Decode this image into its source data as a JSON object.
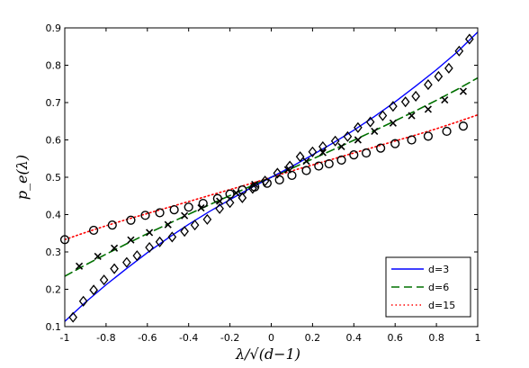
{
  "chart_data": {
    "type": "line",
    "title": "",
    "xlabel": "λ/√(d−1)",
    "ylabel": "p_e(λ)",
    "xlim": [
      -1,
      1
    ],
    "ylim": [
      0.1,
      0.9
    ],
    "xticks": [
      "-1",
      "-0.8",
      "-0.6",
      "-0.4",
      "-0.2",
      "0",
      "0.2",
      "0.4",
      "0.6",
      "0.8",
      "1"
    ],
    "yticks": [
      "0.1",
      "0.2",
      "0.3",
      "0.4",
      "0.5",
      "0.6",
      "0.7",
      "0.8",
      "0.9"
    ],
    "grid": false,
    "legend_position": "bottom-right",
    "series": [
      {
        "name": "d=3",
        "color": "#0000ff",
        "line_style": "solid",
        "marker": "diamond",
        "marker_color": "#000000",
        "curve": [
          [
            -1.0,
            0.114
          ],
          [
            -0.9,
            0.165
          ],
          [
            -0.8,
            0.212
          ],
          [
            -0.7,
            0.256
          ],
          [
            -0.6,
            0.298
          ],
          [
            -0.5,
            0.337
          ],
          [
            -0.4,
            0.374
          ],
          [
            -0.3,
            0.408
          ],
          [
            -0.2,
            0.44
          ],
          [
            -0.1,
            0.471
          ],
          [
            0.0,
            0.5
          ],
          [
            0.1,
            0.529
          ],
          [
            0.2,
            0.56
          ],
          [
            0.3,
            0.592
          ],
          [
            0.4,
            0.626
          ],
          [
            0.5,
            0.663
          ],
          [
            0.6,
            0.702
          ],
          [
            0.7,
            0.744
          ],
          [
            0.8,
            0.788
          ],
          [
            0.9,
            0.835
          ],
          [
            1.0,
            0.889
          ]
        ],
        "points": [
          [
            -0.96,
            0.125
          ],
          [
            -0.91,
            0.168
          ],
          [
            -0.86,
            0.198
          ],
          [
            -0.81,
            0.225
          ],
          [
            -0.76,
            0.255
          ],
          [
            -0.7,
            0.272
          ],
          [
            -0.65,
            0.29
          ],
          [
            -0.59,
            0.312
          ],
          [
            -0.54,
            0.327
          ],
          [
            -0.48,
            0.34
          ],
          [
            -0.42,
            0.355
          ],
          [
            -0.37,
            0.372
          ],
          [
            -0.31,
            0.387
          ],
          [
            -0.25,
            0.416
          ],
          [
            -0.2,
            0.432
          ],
          [
            -0.14,
            0.445
          ],
          [
            -0.09,
            0.47
          ],
          [
            -0.03,
            0.49
          ],
          [
            0.03,
            0.511
          ],
          [
            0.09,
            0.53
          ],
          [
            0.14,
            0.555
          ],
          [
            0.2,
            0.568
          ],
          [
            0.25,
            0.582
          ],
          [
            0.31,
            0.597
          ],
          [
            0.37,
            0.609
          ],
          [
            0.42,
            0.633
          ],
          [
            0.48,
            0.648
          ],
          [
            0.54,
            0.665
          ],
          [
            0.59,
            0.69
          ],
          [
            0.65,
            0.702
          ],
          [
            0.7,
            0.717
          ],
          [
            0.76,
            0.748
          ],
          [
            0.81,
            0.77
          ],
          [
            0.86,
            0.792
          ],
          [
            0.91,
            0.838
          ],
          [
            0.96,
            0.87
          ]
        ]
      },
      {
        "name": "d=6",
        "color": "#007000",
        "line_style": "dashed",
        "marker": "x",
        "marker_color": "#000000",
        "curve": [
          [
            -1.0,
            0.235
          ],
          [
            -0.9,
            0.265
          ],
          [
            -0.8,
            0.294
          ],
          [
            -0.7,
            0.322
          ],
          [
            -0.6,
            0.349
          ],
          [
            -0.5,
            0.375
          ],
          [
            -0.4,
            0.401
          ],
          [
            -0.3,
            0.426
          ],
          [
            -0.2,
            0.451
          ],
          [
            -0.1,
            0.476
          ],
          [
            0.0,
            0.5
          ],
          [
            0.1,
            0.524
          ],
          [
            0.2,
            0.549
          ],
          [
            0.3,
            0.574
          ],
          [
            0.4,
            0.599
          ],
          [
            0.5,
            0.625
          ],
          [
            0.6,
            0.651
          ],
          [
            0.7,
            0.678
          ],
          [
            0.8,
            0.706
          ],
          [
            0.9,
            0.735
          ],
          [
            1.0,
            0.766
          ]
        ],
        "points": [
          [
            -0.93,
            0.262
          ],
          [
            -0.84,
            0.288
          ],
          [
            -0.76,
            0.31
          ],
          [
            -0.68,
            0.332
          ],
          [
            -0.59,
            0.352
          ],
          [
            -0.5,
            0.373
          ],
          [
            -0.42,
            0.397
          ],
          [
            -0.34,
            0.418
          ],
          [
            -0.25,
            0.436
          ],
          [
            -0.17,
            0.458
          ],
          [
            -0.08,
            0.481
          ],
          [
            0.08,
            0.52
          ],
          [
            0.17,
            0.543
          ],
          [
            0.25,
            0.566
          ],
          [
            0.34,
            0.582
          ],
          [
            0.42,
            0.6
          ],
          [
            0.5,
            0.623
          ],
          [
            0.59,
            0.645
          ],
          [
            0.68,
            0.665
          ],
          [
            0.76,
            0.682
          ],
          [
            0.84,
            0.707
          ],
          [
            0.93,
            0.73
          ]
        ]
      },
      {
        "name": "d=15",
        "color": "#ff0000",
        "line_style": "dotted",
        "marker": "circle",
        "marker_color": "#000000",
        "curve": [
          [
            -1.0,
            0.333
          ],
          [
            -0.9,
            0.352
          ],
          [
            -0.8,
            0.37
          ],
          [
            -0.7,
            0.387
          ],
          [
            -0.6,
            0.403
          ],
          [
            -0.5,
            0.419
          ],
          [
            -0.4,
            0.435
          ],
          [
            -0.3,
            0.451
          ],
          [
            -0.2,
            0.467
          ],
          [
            -0.1,
            0.483
          ],
          [
            0.0,
            0.5
          ],
          [
            0.1,
            0.517
          ],
          [
            0.2,
            0.533
          ],
          [
            0.3,
            0.549
          ],
          [
            0.4,
            0.565
          ],
          [
            0.5,
            0.581
          ],
          [
            0.6,
            0.597
          ],
          [
            0.7,
            0.613
          ],
          [
            0.8,
            0.63
          ],
          [
            0.9,
            0.648
          ],
          [
            1.0,
            0.667
          ]
        ],
        "points": [
          [
            -1.0,
            0.333
          ],
          [
            -0.86,
            0.358
          ],
          [
            -0.77,
            0.372
          ],
          [
            -0.68,
            0.385
          ],
          [
            -0.61,
            0.398
          ],
          [
            -0.54,
            0.405
          ],
          [
            -0.47,
            0.413
          ],
          [
            -0.4,
            0.42
          ],
          [
            -0.33,
            0.43
          ],
          [
            -0.26,
            0.443
          ],
          [
            -0.2,
            0.455
          ],
          [
            -0.14,
            0.466
          ],
          [
            -0.08,
            0.474
          ],
          [
            -0.02,
            0.484
          ],
          [
            0.04,
            0.493
          ],
          [
            0.1,
            0.505
          ],
          [
            0.17,
            0.518
          ],
          [
            0.23,
            0.53
          ],
          [
            0.28,
            0.536
          ],
          [
            0.34,
            0.546
          ],
          [
            0.4,
            0.56
          ],
          [
            0.46,
            0.565
          ],
          [
            0.53,
            0.578
          ],
          [
            0.6,
            0.59
          ],
          [
            0.68,
            0.6
          ],
          [
            0.76,
            0.61
          ],
          [
            0.85,
            0.623
          ],
          [
            0.93,
            0.637
          ]
        ]
      }
    ]
  }
}
